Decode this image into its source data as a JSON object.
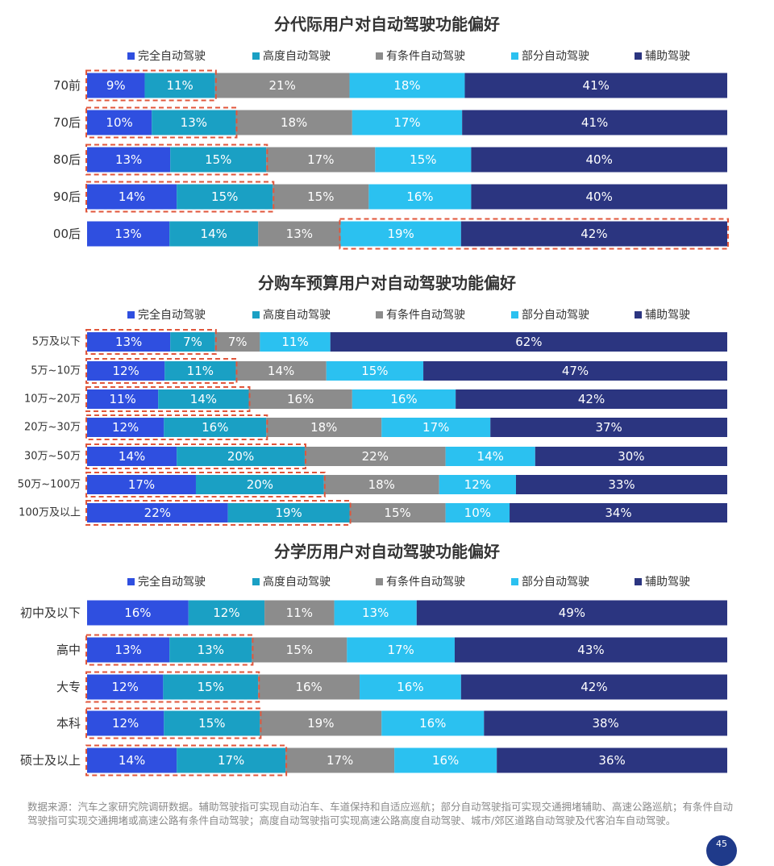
{
  "legend": {
    "labels": [
      "完全自动驾驶",
      "高度自动驾驶",
      "有条件自动驾驶",
      "部分自动驾驶",
      "辅助驾驶"
    ]
  },
  "colors": [
    "#2f4fe0",
    "#1aa0c4",
    "#8c8c8c",
    "#2bc1f0",
    "#2b3580"
  ],
  "highlight_color": "#e0563b",
  "chart_data": [
    {
      "type": "bar",
      "orientation": "horizontal-stacked-100",
      "title": "分代际用户对自动驾驶功能偏好",
      "categories": [
        "70前",
        "70后",
        "80后",
        "90后",
        "00后"
      ],
      "series": [
        {
          "name": "完全自动驾驶",
          "values": [
            9,
            10,
            13,
            14,
            13
          ]
        },
        {
          "name": "高度自动驾驶",
          "values": [
            11,
            13,
            15,
            15,
            14
          ]
        },
        {
          "name": "有条件自动驾驶",
          "values": [
            21,
            18,
            17,
            15,
            13
          ]
        },
        {
          "name": "部分自动驾驶",
          "values": [
            18,
            17,
            15,
            16,
            19
          ]
        },
        {
          "name": "辅助驾驶",
          "values": [
            41,
            41,
            40,
            40,
            42
          ]
        }
      ],
      "highlights": [
        {
          "category": 0,
          "series_from": 0,
          "series_to": 1
        },
        {
          "category": 1,
          "series_from": 0,
          "series_to": 1
        },
        {
          "category": 2,
          "series_from": 0,
          "series_to": 1
        },
        {
          "category": 3,
          "series_from": 0,
          "series_to": 1
        },
        {
          "category": 4,
          "series_from": 3,
          "series_to": 4
        }
      ],
      "value_suffix": "%"
    },
    {
      "type": "bar",
      "orientation": "horizontal-stacked-100",
      "title": "分购车预算用户对自动驾驶功能偏好",
      "categories": [
        "5万及以下",
        "5万~10万",
        "10万~20万",
        "20万~30万",
        "30万~50万",
        "50万~100万",
        "100万及以上"
      ],
      "series": [
        {
          "name": "完全自动驾驶",
          "values": [
            13,
            12,
            11,
            12,
            14,
            17,
            22
          ]
        },
        {
          "name": "高度自动驾驶",
          "values": [
            7,
            11,
            14,
            16,
            20,
            20,
            19
          ]
        },
        {
          "name": "有条件自动驾驶",
          "values": [
            7,
            14,
            16,
            18,
            22,
            18,
            15
          ]
        },
        {
          "name": "部分自动驾驶",
          "values": [
            11,
            15,
            16,
            17,
            14,
            12,
            10
          ]
        },
        {
          "name": "辅助驾驶",
          "values": [
            62,
            47,
            42,
            37,
            30,
            33,
            34
          ]
        }
      ],
      "highlights": [
        {
          "category": 0,
          "series_from": 0,
          "series_to": 1
        },
        {
          "category": 1,
          "series_from": 0,
          "series_to": 1
        },
        {
          "category": 2,
          "series_from": 0,
          "series_to": 1
        },
        {
          "category": 3,
          "series_from": 0,
          "series_to": 1
        },
        {
          "category": 4,
          "series_from": 0,
          "series_to": 1
        },
        {
          "category": 5,
          "series_from": 0,
          "series_to": 1
        },
        {
          "category": 6,
          "series_from": 0,
          "series_to": 1
        }
      ],
      "value_suffix": "%"
    },
    {
      "type": "bar",
      "orientation": "horizontal-stacked-100",
      "title": "分学历用户对自动驾驶功能偏好",
      "categories": [
        "初中及以下",
        "高中",
        "大专",
        "本科",
        "硕士及以上"
      ],
      "series": [
        {
          "name": "完全自动驾驶",
          "values": [
            16,
            13,
            12,
            12,
            14
          ]
        },
        {
          "name": "高度自动驾驶",
          "values": [
            12,
            13,
            15,
            15,
            17
          ]
        },
        {
          "name": "有条件自动驾驶",
          "values": [
            11,
            15,
            16,
            19,
            17
          ]
        },
        {
          "name": "部分自动驾驶",
          "values": [
            13,
            17,
            16,
            16,
            16
          ]
        },
        {
          "name": "辅助驾驶",
          "values": [
            49,
            43,
            42,
            38,
            36
          ]
        }
      ],
      "highlights": [
        {
          "category": 1,
          "series_from": 0,
          "series_to": 1
        },
        {
          "category": 2,
          "series_from": 0,
          "series_to": 1
        },
        {
          "category": 3,
          "series_from": 0,
          "series_to": 1
        },
        {
          "category": 4,
          "series_from": 0,
          "series_to": 1
        }
      ],
      "value_suffix": "%"
    }
  ],
  "footnote": "数据来源：汽车之家研究院调研数据。辅助驾驶指可实现自动泊车、车道保持和自适应巡航；部分自动驾驶指可实现交通拥堵辅助、高速公路巡航；有条件自动驾驶指可实现交通拥堵或高速公路有条件自动驾驶；高度自动驾驶指可实现高速公路高度自动驾驶、城市/郊区道路自动驾驶及代客泊车自动驾驶。",
  "page_number": "45"
}
